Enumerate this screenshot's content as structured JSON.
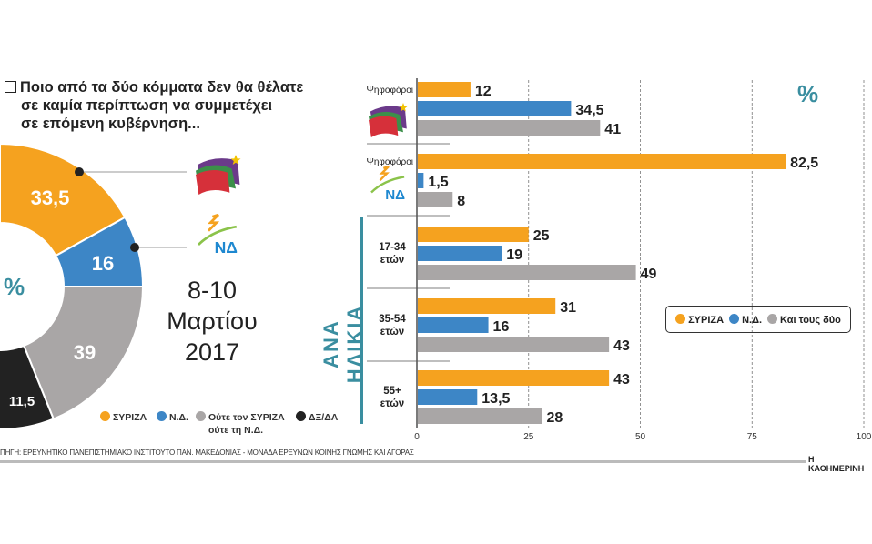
{
  "colors": {
    "syriza": "#f5a21f",
    "nd": "#3d86c6",
    "both": "#a9a6a6",
    "dk": "#222222",
    "teal": "#3a8ea0"
  },
  "title": {
    "lines": [
      "Ποιο από τα δύο κόμματα δεν θα θέλατε",
      "σε καμία περίπτωση να συμμετέχει",
      "σε επόμενη κυβέρνηση..."
    ]
  },
  "date": {
    "lines": [
      "8-10",
      "Μαρτίου",
      "2017"
    ]
  },
  "percent_sign": "%",
  "age_label": "ΑΝΑ ΗΛΙΚΙΑ",
  "footer": {
    "source": "ΠΗΓΗ: ΕΡΕΥΝΗΤΙΚΟ ΠΑΝΕΠΙΣΤΗΜΙΑΚΟ ΙΝΣΤΙΤΟΥΤΟ ΠΑΝ. ΜΑΚΕΔΟΝΙΑΣ - ΜΟΝΑΔΑ ΕΡΕΥΝΩΝ ΚΟΙΝΗΣ ΓΝΩΜΗΣ ΚΑΙ ΑΓΟΡΑΣ",
    "brand": "Η ΚΑΘΗΜΕΡΙΝΗ"
  },
  "logos": {
    "nd_text": "ΝΔ"
  },
  "chart_data": [
    {
      "type": "pie",
      "title": "Ποιο από τα δύο κόμματα δεν θα θέλατε σε καμία περίπτωση να συμμετέχει σε επόμενη κυβέρνηση...",
      "unit": "%",
      "labels": [
        "ΣΥΡΙΖΑ",
        "Ν.Δ.",
        "Ούτε τον ΣΥΡΙΖΑ ούτε τη Ν.Δ.",
        "ΔΞ/ΔΑ"
      ],
      "legend": [
        "ΣΥΡΙΖΑ",
        "Ν.Δ.",
        "Ούτε τον ΣΥΡΙΖΑ",
        "ούτε τη Ν.Δ.",
        "ΔΞ/ΔΑ"
      ],
      "values": [
        33.5,
        16,
        39,
        11.5
      ],
      "value_labels": [
        "33,5",
        "16",
        "39",
        "11,5"
      ]
    },
    {
      "type": "bar",
      "orientation": "horizontal",
      "unit": "%",
      "categories": [
        "Ψηφοφόροι ΣΥΡΙΖΑ",
        "Ψηφοφόροι Ν.Δ.",
        "17-34 ετών",
        "35-54 ετών",
        "55+ ετών"
      ],
      "category_labels": [
        [
          "Ψηφοφόροι"
        ],
        [
          "Ψηφοφόροι"
        ],
        [
          "17-34",
          "ετών"
        ],
        [
          "35-54",
          "ετών"
        ],
        [
          "55+",
          "ετών"
        ]
      ],
      "series": [
        {
          "name": "ΣΥΡΙΖΑ",
          "values": [
            12,
            82.5,
            25,
            31,
            43
          ],
          "labels": [
            "12",
            "82,5",
            "25",
            "31",
            "43"
          ]
        },
        {
          "name": "Ν.Δ.",
          "values": [
            34.5,
            1.5,
            19,
            16,
            13.5
          ],
          "labels": [
            "34,5",
            "1,5",
            "19",
            "16",
            "13,5"
          ]
        },
        {
          "name": "Και τους δύο",
          "values": [
            41,
            8,
            49,
            43,
            28
          ],
          "labels": [
            "41",
            "8",
            "49",
            "43",
            "28"
          ]
        }
      ],
      "xlim": [
        0,
        100
      ],
      "xticks": [
        "0",
        "25",
        "50",
        "75",
        "100"
      ],
      "grid": true,
      "legend_placement": "right-middle"
    }
  ]
}
